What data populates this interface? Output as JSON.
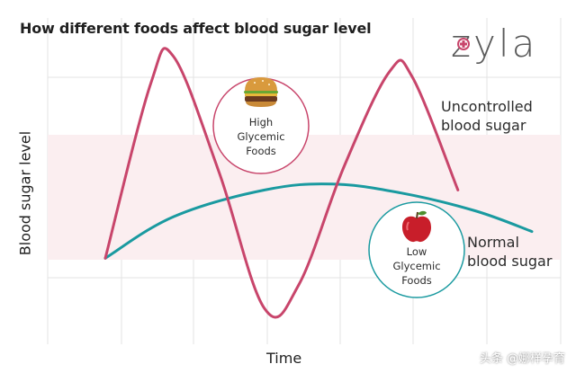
{
  "title": "How different foods affect blood sugar level",
  "brand": "zyla",
  "colors": {
    "uncontrolled": "#c8456b",
    "normal": "#1a9aa0",
    "band": "#fbeef0",
    "grid": "#e3e3e3",
    "brand_cross": "#c8456b"
  },
  "watermark": "头条 @娜样孕育",
  "chart_data": {
    "type": "line",
    "title": "How different foods affect blood sugar level",
    "xlabel": "Time",
    "ylabel": "Blood sugar level",
    "grid": true,
    "normal_range_band": true,
    "series": [
      {
        "name": "Uncontrolled blood sugar",
        "points": [
          [
            0.0,
            0.29
          ],
          [
            0.08,
            0.88
          ],
          [
            0.12,
            0.97
          ],
          [
            0.2,
            0.58
          ],
          [
            0.28,
            0.12
          ],
          [
            0.34,
            0.2
          ],
          [
            0.42,
            0.6
          ],
          [
            0.5,
            0.92
          ],
          [
            0.54,
            0.9
          ],
          [
            0.62,
            0.52
          ]
        ]
      },
      {
        "name": "Normal blood sugar",
        "points": [
          [
            0.0,
            0.29
          ],
          [
            0.12,
            0.43
          ],
          [
            0.28,
            0.52
          ],
          [
            0.4,
            0.54
          ],
          [
            0.52,
            0.51
          ],
          [
            0.65,
            0.45
          ],
          [
            0.75,
            0.38
          ]
        ]
      }
    ],
    "annotations": [
      {
        "id": "uncontrolled",
        "text_lines": [
          "Uncontrolled",
          "blood sugar"
        ]
      },
      {
        "id": "normal",
        "text_lines": [
          "Normal",
          "blood sugar"
        ]
      }
    ],
    "callouts": [
      {
        "id": "high",
        "icon": "burger-icon",
        "text_lines": [
          "High",
          "Glycemic",
          "Foods"
        ]
      },
      {
        "id": "low",
        "icon": "apple-icon",
        "text_lines": [
          "Low",
          "Glycemic",
          "Foods"
        ]
      }
    ]
  }
}
